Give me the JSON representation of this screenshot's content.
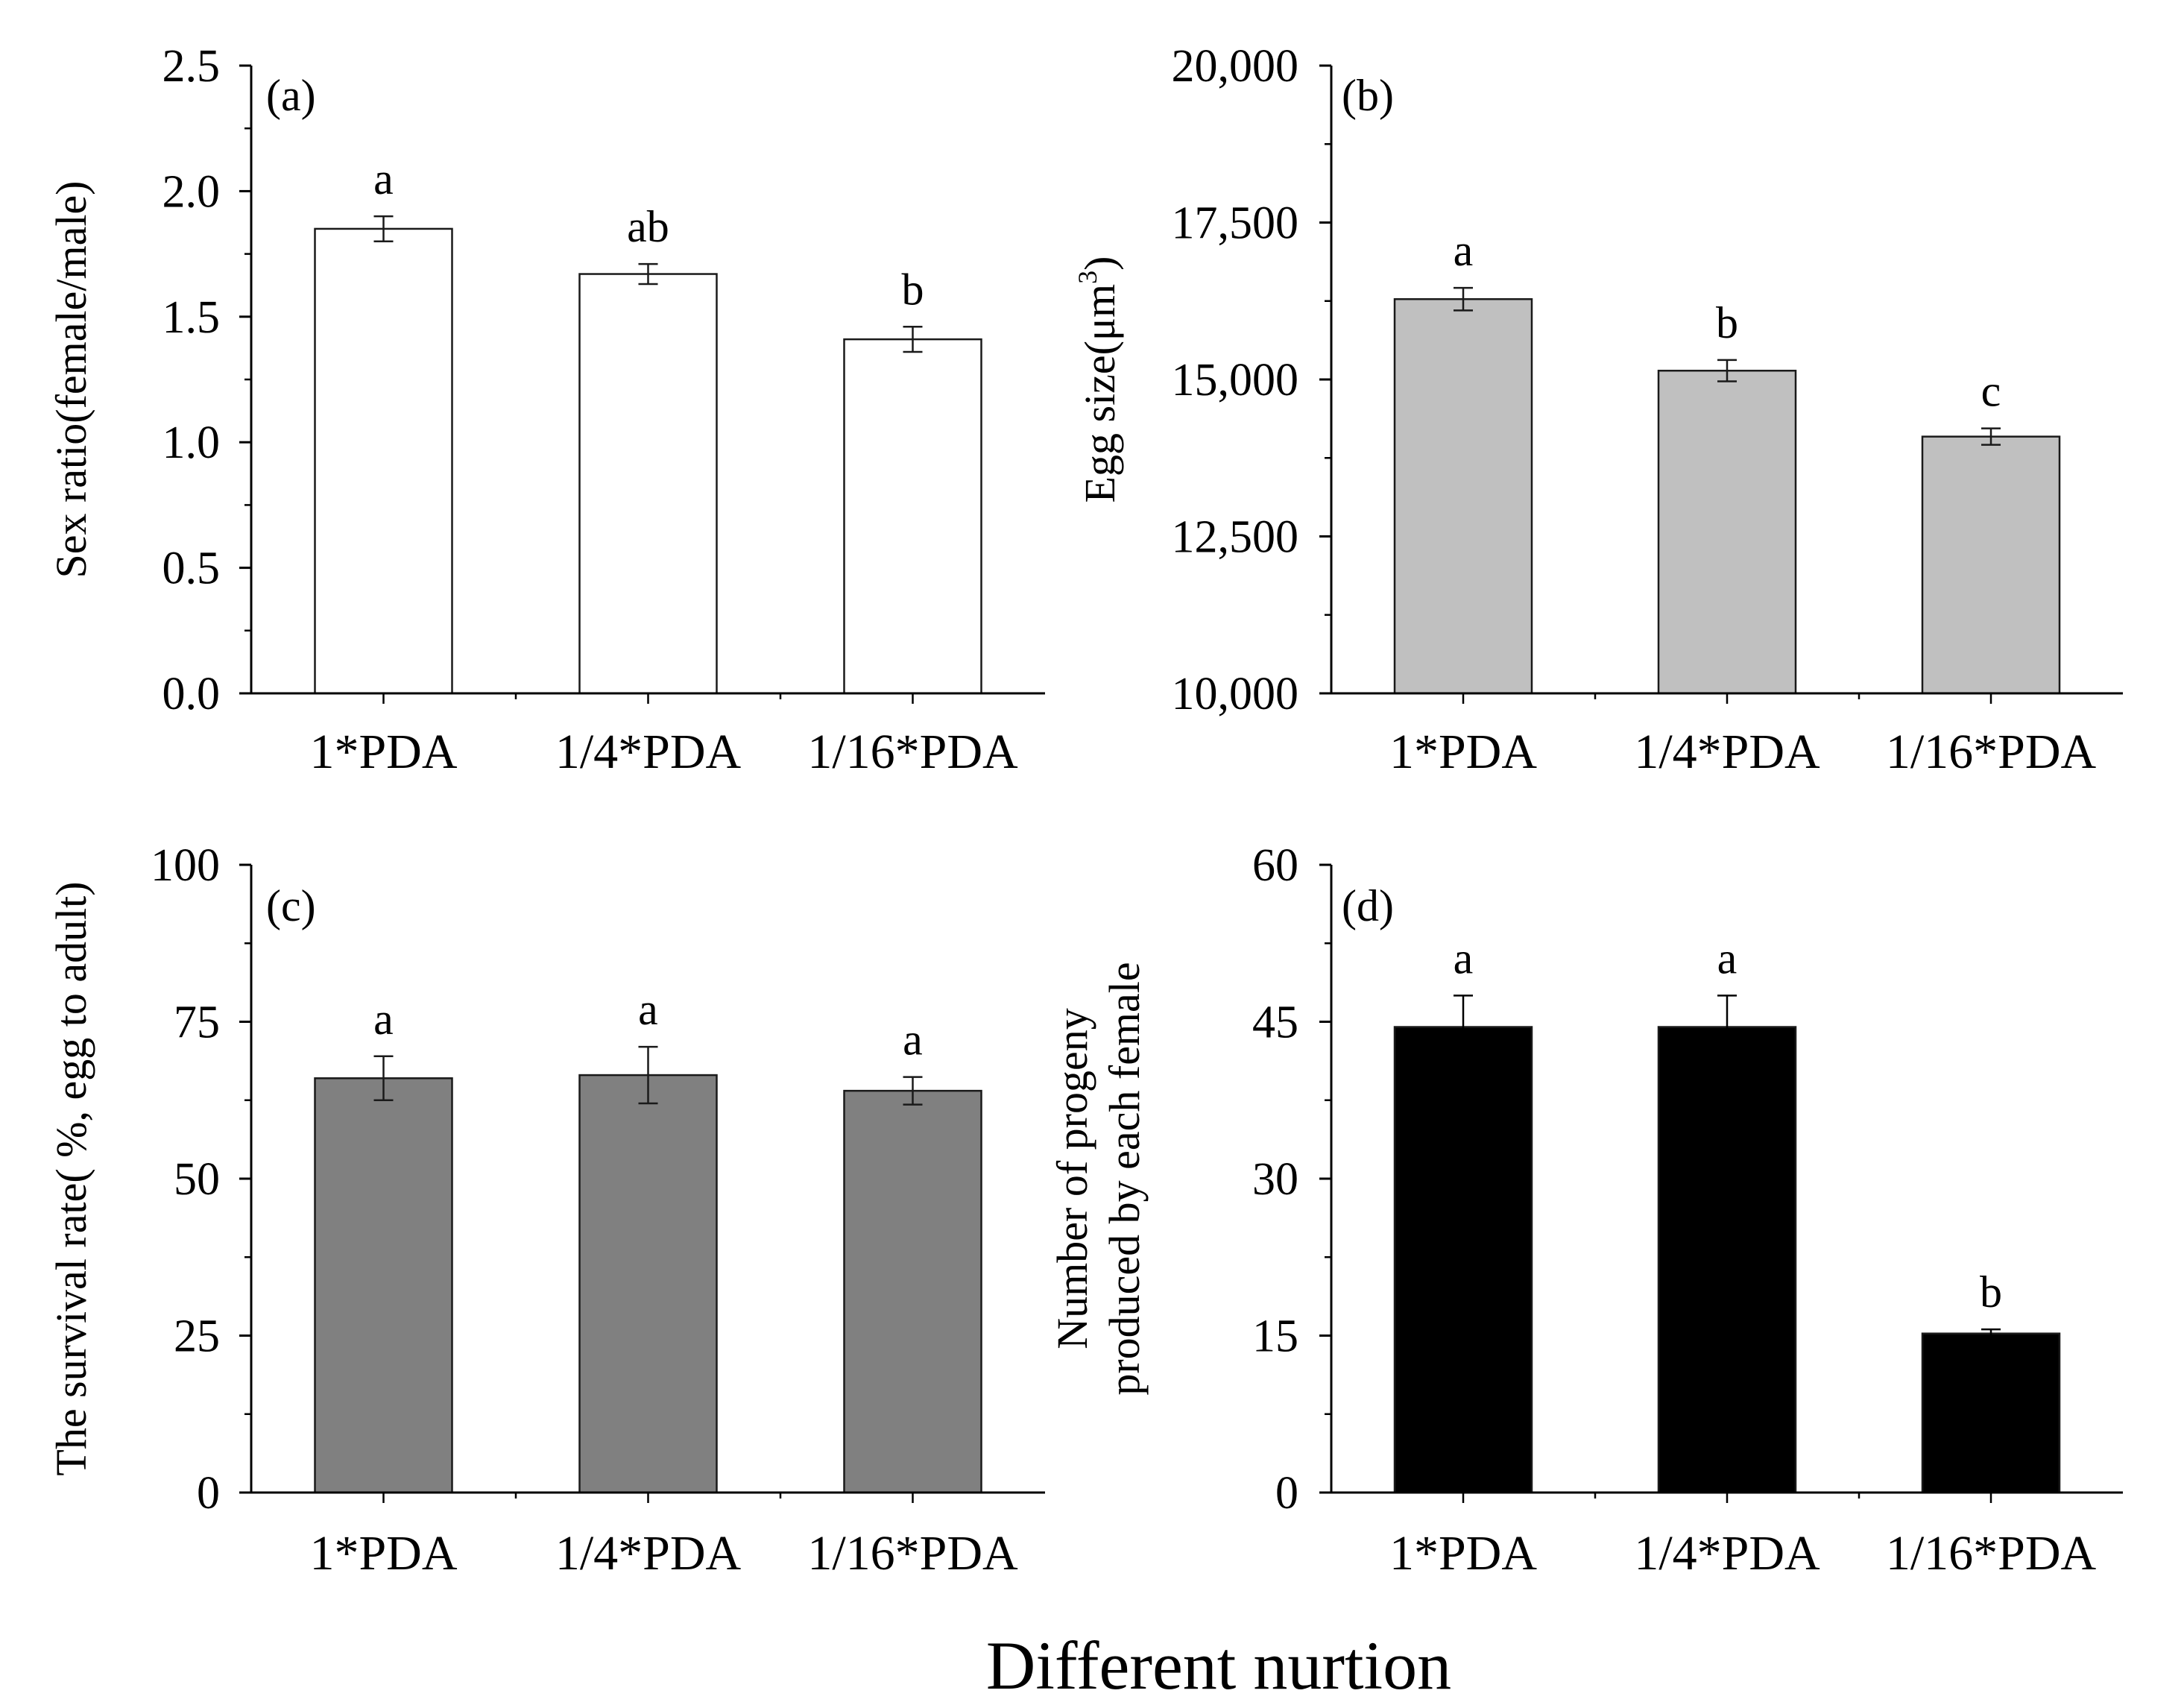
{
  "figure": {
    "shared_xlabel": "Different nurtion"
  },
  "chart_data": [
    {
      "type": "bar",
      "panel": "(a)",
      "categories": [
        "1*PDA",
        "1/4*PDA",
        "1/16*PDA"
      ],
      "values": [
        1.85,
        1.67,
        1.41
      ],
      "errors": [
        0.05,
        0.04,
        0.05
      ],
      "significance": [
        "a",
        "ab",
        "b"
      ],
      "ylabel": "Sex ratio(female/male)",
      "ylabel_sup": "",
      "ylabel_tail": "",
      "ylabel_line2": "",
      "ylim": [
        0,
        2.5
      ],
      "yticks": [
        0,
        0.5,
        1,
        1.5,
        2,
        2.5
      ],
      "ytick_labels": [
        "0.0",
        "0.5",
        "1.0",
        "1.5",
        "2.0",
        "2.5"
      ],
      "bar_color": "#ffffff"
    },
    {
      "type": "bar",
      "panel": "(b)",
      "categories": [
        "1*PDA",
        "1/4*PDA",
        "1/16*PDA"
      ],
      "values": [
        16280,
        15140,
        14090
      ],
      "errors": [
        180,
        170,
        130
      ],
      "significance": [
        "a",
        "b",
        "c"
      ],
      "ylabel": "Egg size(μm",
      "ylabel_sup": "3",
      "ylabel_tail": ")",
      "ylabel_line2": "",
      "ylim": [
        10000,
        20000
      ],
      "yticks": [
        10000,
        12500,
        15000,
        17500,
        20000
      ],
      "ytick_labels": [
        "10,000",
        "12,500",
        "15,000",
        "17,500",
        "20,000"
      ],
      "bar_color": "#c0c0c0"
    },
    {
      "type": "bar",
      "panel": "(c)",
      "categories": [
        "1*PDA",
        "1/4*PDA",
        "1/16*PDA"
      ],
      "values": [
        66,
        66.5,
        64
      ],
      "errors": [
        3.5,
        4.5,
        2.2
      ],
      "significance": [
        "a",
        "a",
        "a"
      ],
      "ylabel": "The survival rate( %, egg to adult)",
      "ylabel_sup": "",
      "ylabel_tail": "",
      "ylabel_line2": "",
      "ylim": [
        0,
        100
      ],
      "yticks": [
        0,
        25,
        50,
        75,
        100
      ],
      "ytick_labels": [
        "0",
        "25",
        "50",
        "75",
        "100"
      ],
      "bar_color": "#808080"
    },
    {
      "type": "bar",
      "panel": "(d)",
      "categories": [
        "1*PDA",
        "1/4*PDA",
        "1/16*PDA"
      ],
      "values": [
        44.5,
        44.5,
        15.2
      ],
      "errors": [
        3,
        3,
        0.4
      ],
      "significance": [
        "a",
        "a",
        "b"
      ],
      "ylabel": "Number of progeny",
      "ylabel_sup": "",
      "ylabel_tail": "",
      "ylabel_line2": "produced  by each female",
      "ylim": [
        0,
        60
      ],
      "yticks": [
        0,
        15,
        30,
        45,
        60
      ],
      "ytick_labels": [
        "0",
        "15",
        "30",
        "45",
        "60"
      ],
      "bar_color": "#000000"
    }
  ]
}
